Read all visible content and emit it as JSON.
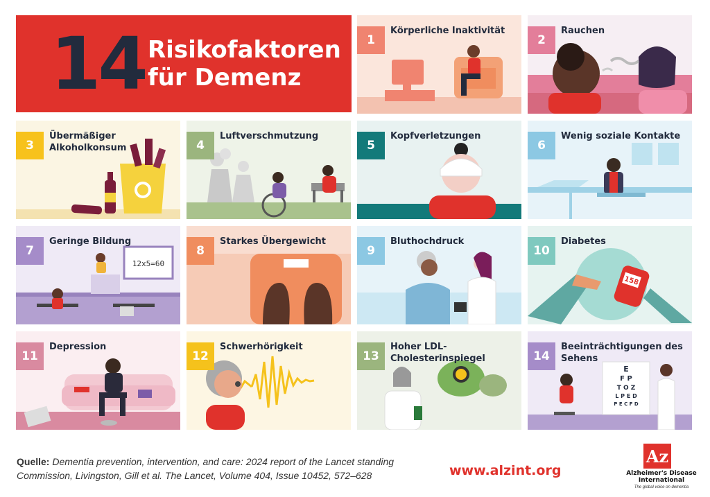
{
  "title": {
    "number": "14",
    "line1": "Risikofaktoren",
    "line2": "für Demenz"
  },
  "factors": [
    {
      "num": "1",
      "label": "Körperliche Inaktivität"
    },
    {
      "num": "2",
      "label": "Rauchen"
    },
    {
      "num": "3",
      "label": "Übermäßiger Alkoholkonsum"
    },
    {
      "num": "4",
      "label": "Luftverschmutzung"
    },
    {
      "num": "5",
      "label": "Kopfverletzungen"
    },
    {
      "num": "6",
      "label": "Wenig soziale Kontakte"
    },
    {
      "num": "7",
      "label": "Geringe Bildung"
    },
    {
      "num": "8",
      "label": "Starkes Übergewicht"
    },
    {
      "num": "9",
      "label": "Bluthochdruck"
    },
    {
      "num": "10",
      "label": "Diabetes"
    },
    {
      "num": "11",
      "label": "Depression"
    },
    {
      "num": "12",
      "label": "Schwerhörigkeit"
    },
    {
      "num": "13",
      "label": "Hoher LDL-Cholesterinspiegel"
    },
    {
      "num": "14",
      "label": "Beeinträchtigungen des Sehens"
    }
  ],
  "art_text": {
    "chalkboard": "12x5=60",
    "glucose": "158",
    "eye_chart": [
      "E",
      "F P",
      "T O Z",
      "L P E D",
      "P E C F D"
    ]
  },
  "footer": {
    "source_label": "Quelle:",
    "source_text": "Dementia prevention, intervention, and care: 2024 report of the Lancet standing Commission, Livingston, Gill et al. The Lancet, Volume 404, Issue 10452, 572–628",
    "url": "www.alzint.org",
    "logo_mark": "Az",
    "logo_name": "Alzheimer's Disease International",
    "logo_tagline": "The global voice on dementia"
  },
  "colors": {
    "title_bg": "#e0322c",
    "title_number": "#222b3d",
    "url": "#e0322c"
  }
}
